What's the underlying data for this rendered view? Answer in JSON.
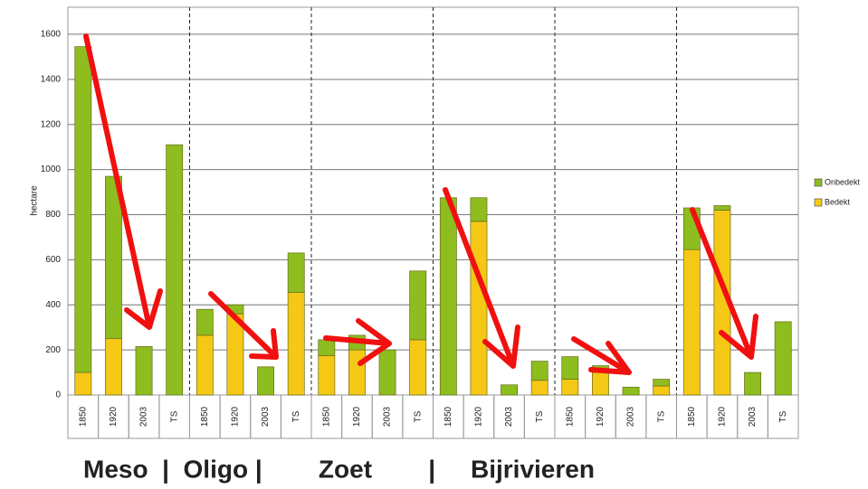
{
  "chart_data": {
    "type": "bar",
    "stacked": true,
    "y_label": "hectare",
    "categories": [
      "1850",
      "1920",
      "2003",
      "TS",
      "1850",
      "1920",
      "2003",
      "TS",
      "1850",
      "1920",
      "2003",
      "TS",
      "1850",
      "1920",
      "2003",
      "TS",
      "1850",
      "1920",
      "2003",
      "TS",
      "1850",
      "1920",
      "2003",
      "TS"
    ],
    "series": [
      {
        "name": "Bedekt",
        "color": "#f5c816",
        "values": [
          100,
          250,
          0,
          0,
          265,
          360,
          0,
          455,
          175,
          200,
          0,
          245,
          0,
          770,
          0,
          65,
          70,
          100,
          0,
          40,
          645,
          820,
          0,
          0
        ]
      },
      {
        "name": "Onbedekt",
        "color": "#8dbd1f",
        "values": [
          1445,
          720,
          215,
          1110,
          115,
          40,
          125,
          175,
          70,
          65,
          200,
          305,
          875,
          105,
          45,
          85,
          100,
          30,
          35,
          30,
          185,
          20,
          100,
          325
        ]
      }
    ],
    "ylim": [
      0,
      1720
    ],
    "yticks": [
      0,
      200,
      400,
      600,
      800,
      1000,
      1200,
      1400,
      1600
    ],
    "grid": true,
    "footer": "Meso  |  Oligo |        Zoet        |     Bijrivieren"
  }
}
